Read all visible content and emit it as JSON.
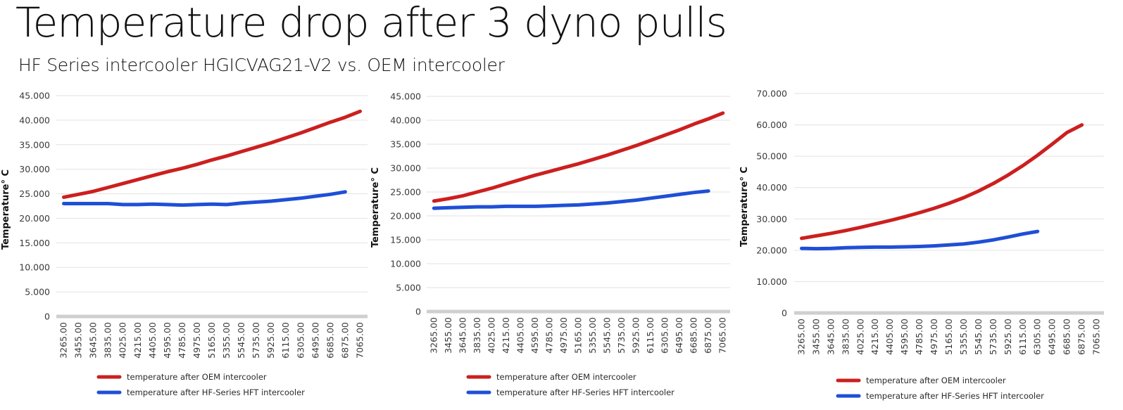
{
  "header": {
    "title": "Temperature drop after 3 dyno pulls",
    "subtitle": "HF Series intercooler HGICVAG21-V2 vs. OEM intercooler"
  },
  "colors": {
    "oem": "#cc1f1f",
    "hft": "#1f4fd6",
    "grid": "#e2e2e2",
    "axis": "#cfcfcf"
  },
  "chart_data": [
    {
      "type": "line",
      "ylabel": "Temperature° C",
      "ylim": [
        0,
        45
      ],
      "yticks": [
        "0",
        "5.000",
        "10.000",
        "15.000",
        "20.000",
        "25.000",
        "30.000",
        "35.000",
        "40.000",
        "45.000"
      ],
      "categories": [
        "3265.00",
        "3455.00",
        "3645.00",
        "3835.00",
        "4025.00",
        "4215.00",
        "4405.00",
        "4595.00",
        "4785.00",
        "4975.00",
        "5165.00",
        "5355.00",
        "5545.00",
        "5735.00",
        "5925.00",
        "6115.00",
        "6305.00",
        "6495.00",
        "6685.00",
        "6875.00",
        "7065.00"
      ],
      "series": [
        {
          "name": "temperature after OEM intercooler",
          "color": "#cc1f1f",
          "values": [
            24.3,
            24.9,
            25.5,
            26.3,
            27.1,
            27.9,
            28.7,
            29.5,
            30.2,
            31.0,
            31.9,
            32.7,
            33.6,
            34.5,
            35.4,
            36.4,
            37.4,
            38.5,
            39.6,
            40.6,
            41.8
          ]
        },
        {
          "name": "temperature after HF-Series HFT intercooler",
          "color": "#1f4fd6",
          "values": [
            23.0,
            23.0,
            23.0,
            23.0,
            22.8,
            22.8,
            22.9,
            22.8,
            22.7,
            22.8,
            22.9,
            22.8,
            23.1,
            23.3,
            23.5,
            23.8,
            24.1,
            24.5,
            24.9,
            25.4,
            null
          ]
        }
      ]
    },
    {
      "type": "line",
      "ylabel": "Temperature° C",
      "ylim": [
        0,
        45
      ],
      "yticks": [
        "0",
        "5.000",
        "10.000",
        "15.000",
        "20.000",
        "25.000",
        "30.000",
        "35.000",
        "40.000",
        "45.000"
      ],
      "categories": [
        "3265.00",
        "3455.00",
        "3645.00",
        "3835.00",
        "4025.00",
        "4215.00",
        "4405.00",
        "4595.00",
        "4785.00",
        "4975.00",
        "5165.00",
        "5355.00",
        "5545.00",
        "5735.00",
        "5925.00",
        "6115.00",
        "6305.00",
        "6495.00",
        "6685.00",
        "6875.00",
        "7065.00"
      ],
      "series": [
        {
          "name": "temperature after OEM intercooler",
          "color": "#cc1f1f",
          "values": [
            23.1,
            23.6,
            24.2,
            25.0,
            25.8,
            26.7,
            27.6,
            28.5,
            29.3,
            30.1,
            30.9,
            31.8,
            32.7,
            33.7,
            34.7,
            35.8,
            36.9,
            38.0,
            39.2,
            40.3,
            41.5
          ]
        },
        {
          "name": "temperature after HF-Series HFT intercooler",
          "color": "#1f4fd6",
          "values": [
            21.6,
            21.7,
            21.8,
            21.9,
            21.9,
            22.0,
            22.0,
            22.0,
            22.1,
            22.2,
            22.3,
            22.5,
            22.7,
            23.0,
            23.3,
            23.7,
            24.1,
            24.5,
            24.9,
            25.2,
            null
          ]
        }
      ]
    },
    {
      "type": "line",
      "ylabel": "Temperature° C",
      "ylim": [
        0,
        70
      ],
      "yticks": [
        "0",
        "10.000",
        "20.000",
        "30.000",
        "40.000",
        "50.000",
        "60.000",
        "70.000"
      ],
      "categories": [
        "3265.00",
        "3455.00",
        "3645.00",
        "3835.00",
        "4025.00",
        "4215.00",
        "4405.00",
        "4595.00",
        "4785.00",
        "4975.00",
        "5165.00",
        "5355.00",
        "5545.00",
        "5735.00",
        "5925.00",
        "6115.00",
        "6305.00",
        "6495.00",
        "6685.00",
        "6875.00",
        "7065.00"
      ],
      "series": [
        {
          "name": "temperature after OEM intercooler",
          "color": "#cc1f1f",
          "values": [
            23.8,
            24.6,
            25.4,
            26.3,
            27.3,
            28.4,
            29.5,
            30.7,
            32.0,
            33.4,
            35.0,
            36.8,
            38.9,
            41.3,
            44.0,
            47.0,
            50.3,
            53.9,
            57.6,
            60.0,
            null
          ]
        },
        {
          "name": "temperature after HF-Series HFT intercooler",
          "color": "#1f4fd6",
          "values": [
            20.6,
            20.5,
            20.6,
            20.8,
            20.9,
            21.0,
            21.0,
            21.1,
            21.2,
            21.4,
            21.7,
            22.0,
            22.6,
            23.3,
            24.2,
            25.2,
            26.0,
            null,
            null,
            null,
            null
          ]
        }
      ]
    }
  ]
}
